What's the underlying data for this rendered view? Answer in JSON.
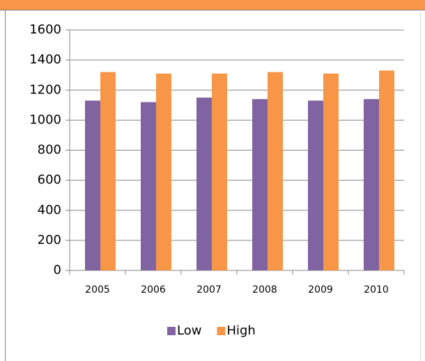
{
  "chart_data": {
    "type": "bar",
    "categories": [
      "2005",
      "2006",
      "2007",
      "2008",
      "2009",
      "2010"
    ],
    "series": [
      {
        "name": "Low",
        "color": "#8064a2",
        "values": [
          1130,
          1120,
          1150,
          1140,
          1130,
          1140
        ]
      },
      {
        "name": "High",
        "color": "#f79646",
        "values": [
          1320,
          1310,
          1310,
          1320,
          1310,
          1330
        ]
      }
    ],
    "ylim": [
      0,
      1600
    ],
    "yticks": [
      0,
      200,
      400,
      600,
      800,
      1000,
      1200,
      1400,
      1600
    ],
    "grid": true,
    "legend": "bottom"
  }
}
